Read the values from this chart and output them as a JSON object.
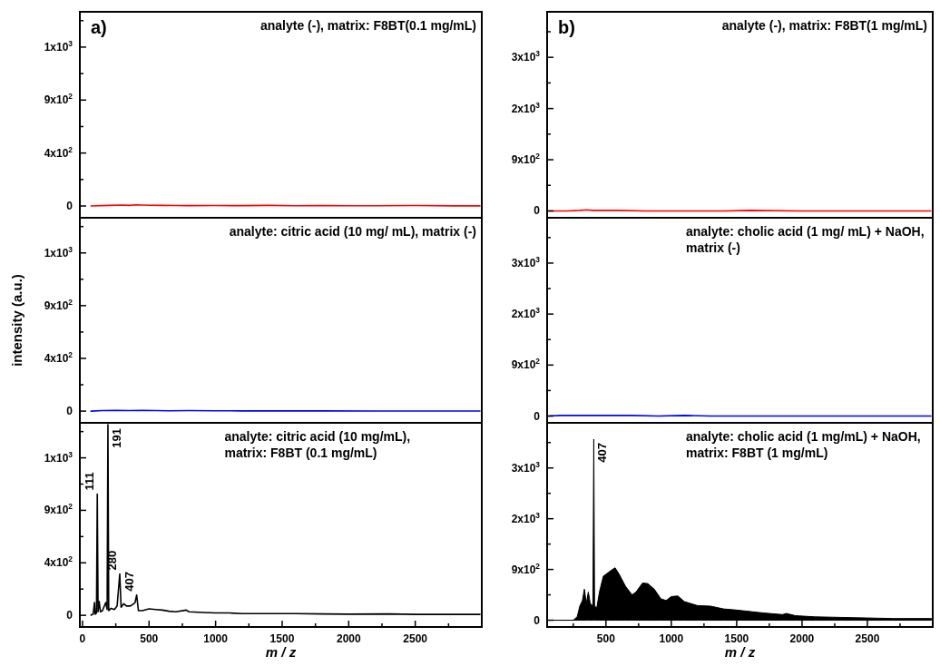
{
  "chart_data": [
    {
      "type": "line",
      "title": "a)",
      "subtitle": "analyte (-), matrix: F8BT(0.1 mg/mL)",
      "tick_labels": "y",
      "xlim": [
        -20,
        3000
      ],
      "ylim": [
        -100,
        1650
      ],
      "yticks": [
        {
          "value": 0,
          "label": "0"
        },
        {
          "value": 225,
          "label": null
        },
        {
          "value": 450,
          "label": "4x10$^{2}$"
        },
        {
          "value": 675,
          "label": null
        },
        {
          "value": 900,
          "label": "9x10$^{2}$"
        },
        {
          "value": 1125,
          "label": null
        },
        {
          "value": 1350,
          "label": "1x10$^{3}$"
        },
        {
          "value": 1575,
          "label": null
        }
      ],
      "series": [
        {
          "color": "#ff0000",
          "x": [
            60,
            200,
            300,
            350,
            400,
            450,
            500,
            600,
            700,
            800,
            1000,
            1200,
            1400,
            1600,
            1800,
            2000,
            2200,
            2500,
            2800,
            2990
          ],
          "values": [
            0,
            5,
            8,
            5,
            10,
            8,
            6,
            5,
            4,
            3,
            4,
            3,
            5,
            2,
            3,
            2,
            2,
            4,
            1,
            1
          ]
        }
      ]
    },
    {
      "type": "line",
      "title": "b)",
      "subtitle": "analyte (-), matrix: F8BT(1 mg/mL)",
      "tick_labels": "y",
      "xlim": [
        50,
        3000
      ],
      "ylim": [
        -120,
        3500
      ],
      "yticks": [
        {
          "value": 0,
          "label": "0"
        },
        {
          "value": 450,
          "label": null
        },
        {
          "value": 900,
          "label": "9x10$^{2}$"
        },
        {
          "value": 1350,
          "label": null
        },
        {
          "value": 1800,
          "label": "2x10$^{3}$"
        },
        {
          "value": 2250,
          "label": null
        },
        {
          "value": 2700,
          "label": "3x10$^{3}$"
        },
        {
          "value": 3150,
          "label": null
        }
      ],
      "series": [
        {
          "color": "#ff0000",
          "x": [
            60,
            200,
            300,
            350,
            400,
            500,
            600,
            800,
            1000,
            1200,
            1400,
            1600,
            2000,
            2400,
            2800,
            2990
          ],
          "values": [
            0,
            0,
            10,
            20,
            10,
            10,
            10,
            0,
            0,
            0,
            0,
            10,
            0,
            0,
            0,
            0
          ]
        }
      ]
    },
    {
      "type": "line",
      "subtitle": "analyte: citric acid (10 mg/ mL), matrix (-)",
      "ylabel": "intensity (a.u.)",
      "tick_labels": "y",
      "xlim": [
        -20,
        3000
      ],
      "ylim": [
        -100,
        1650
      ],
      "yticks": [
        {
          "value": 0,
          "label": "0"
        },
        {
          "value": 225,
          "label": null
        },
        {
          "value": 450,
          "label": "4x10$^{2}$"
        },
        {
          "value": 675,
          "label": null
        },
        {
          "value": 900,
          "label": "9x10$^{2}$"
        },
        {
          "value": 1125,
          "label": null
        },
        {
          "value": 1350,
          "label": "1x10$^{3}$"
        },
        {
          "value": 1575,
          "label": null
        }
      ],
      "series": [
        {
          "color": "#0000ff",
          "x": [
            60,
            150,
            250,
            350,
            450,
            550,
            650,
            800,
            1000,
            1200,
            1500,
            1800,
            2200,
            2600,
            2990
          ],
          "values": [
            0,
            4,
            6,
            5,
            6,
            4,
            3,
            4,
            3,
            2,
            2,
            2,
            1,
            1,
            1
          ]
        }
      ]
    },
    {
      "type": "line",
      "subtitle": "analyte: cholic acid (1 mg/ mL) + NaOH,\nmatrix (-)",
      "tick_labels": "y",
      "xlim": [
        50,
        3000
      ],
      "ylim": [
        -120,
        3500
      ],
      "yticks": [
        {
          "value": 0,
          "label": "0"
        },
        {
          "value": 450,
          "label": null
        },
        {
          "value": 900,
          "label": "9x10$^{2}$"
        },
        {
          "value": 1350,
          "label": null
        },
        {
          "value": 1800,
          "label": "2x10$^{3}$"
        },
        {
          "value": 2250,
          "label": null
        },
        {
          "value": 2700,
          "label": "3x10$^{3}$"
        },
        {
          "value": 3150,
          "label": null
        }
      ],
      "series": [
        {
          "color": "#0000ff",
          "x": [
            60,
            150,
            250,
            350,
            450,
            550,
            700,
            900,
            1100,
            1300,
            1600,
            2000,
            2400,
            2800,
            2990
          ],
          "values": [
            0,
            10,
            10,
            10,
            10,
            10,
            10,
            0,
            10,
            0,
            0,
            0,
            0,
            0,
            0
          ]
        }
      ]
    },
    {
      "type": "line",
      "xlabel": "m / z",
      "xlim": [
        -20,
        3000
      ],
      "ylim": [
        -100,
        1650
      ],
      "xticks": [
        0,
        {
          "value": 250,
          "label": null
        },
        500,
        {
          "value": 750,
          "label": null
        },
        1000,
        {
          "value": 1250,
          "label": null
        },
        1500,
        {
          "value": 1750,
          "label": null
        },
        2000,
        {
          "value": 2250,
          "label": null
        },
        2500,
        {
          "value": 2750,
          "label": null
        }
      ],
      "yticks": [
        {
          "value": 0,
          "label": "0"
        },
        {
          "value": 225,
          "label": null
        },
        {
          "value": 450,
          "label": "4x10$^{2}$"
        },
        {
          "value": 675,
          "label": null
        },
        {
          "value": 900,
          "label": "9x10$^{2}$"
        },
        {
          "value": 1125,
          "label": null
        },
        {
          "value": 1350,
          "label": "1x10$^{3}$"
        },
        {
          "value": 1575,
          "label": null
        }
      ],
      "subtitle": "analyte: citric acid (10 mg/mL),\nmatrix: F8BT (0.1 mg/mL)",
      "annotations": [
        {
          "text": "111",
          "x": 111,
          "y": 1040
        },
        {
          "text": "191",
          "x": 191,
          "y": 1634
        },
        {
          "text": "280",
          "x": 280,
          "y": 355
        },
        {
          "text": "407",
          "x": 407,
          "y": 174
        }
      ],
      "series": [
        {
          "color": "#000000",
          "x": [
            60,
            80,
            90,
            95,
            105,
            111,
            117,
            125,
            135,
            150,
            175,
            185,
            191,
            197,
            215,
            240,
            260,
            280,
            290,
            310,
            330,
            360,
            385,
            395,
            407,
            420,
            450,
            500,
            550,
            600,
            650,
            700,
            780,
            800,
            900,
            1000,
            1100,
            1200,
            1400,
            1600,
            1800,
            2000,
            2300,
            2500,
            2800,
            2990
          ],
          "values": [
            0,
            10,
            110,
            10,
            20,
            1040,
            30,
            120,
            30,
            40,
            110,
            50,
            1634,
            40,
            60,
            50,
            80,
            355,
            70,
            100,
            80,
            80,
            100,
            110,
            174,
            40,
            40,
            55,
            50,
            45,
            35,
            30,
            45,
            30,
            25,
            20,
            20,
            15,
            15,
            15,
            12,
            10,
            12,
            8,
            8,
            8
          ]
        }
      ]
    },
    {
      "type": "area",
      "xlabel": "m / z",
      "xlim": [
        50,
        3000
      ],
      "ylim": [
        -120,
        3500
      ],
      "xticks": [
        {
          "value": 250,
          "label": null
        },
        500,
        {
          "value": 750,
          "label": null
        },
        1000,
        {
          "value": 1250,
          "label": null
        },
        1500,
        {
          "value": 1750,
          "label": null
        },
        2000,
        {
          "value": 2250,
          "label": null
        },
        2500,
        {
          "value": 2750,
          "label": null
        }
      ],
      "yticks": [
        {
          "value": 0,
          "label": "0"
        },
        {
          "value": 450,
          "label": null
        },
        {
          "value": 900,
          "label": "9x10$^{2}$"
        },
        {
          "value": 1350,
          "label": null
        },
        {
          "value": 1800,
          "label": "2x10$^{3}$"
        },
        {
          "value": 2250,
          "label": null
        },
        {
          "value": 2700,
          "label": "3x10$^{3}$"
        },
        {
          "value": 3150,
          "label": null
        }
      ],
      "subtitle": "analyte: cholic acid (1 mg/mL) + NaOH,\nmatrix: F8BT (1 mg/mL)",
      "annotations": [
        {
          "text": "407",
          "x": 407,
          "y": 3210
        }
      ],
      "series": [
        {
          "color": "#000000",
          "x": [
            100,
            250,
            280,
            300,
            320,
            335,
            350,
            365,
            380,
            400,
            407,
            413,
            430,
            450,
            480,
            520,
            550,
            570,
            600,
            650,
            700,
            730,
            780,
            820,
            870,
            920,
            960,
            1000,
            1050,
            1100,
            1200,
            1300,
            1400,
            1500,
            1700,
            1850,
            1880,
            1950,
            2100,
            2300,
            2500,
            2700,
            2990
          ],
          "values": [
            0,
            0,
            60,
            250,
            350,
            550,
            300,
            500,
            300,
            250,
            3210,
            250,
            220,
            500,
            780,
            850,
            900,
            930,
            820,
            600,
            450,
            500,
            660,
            650,
            550,
            380,
            350,
            420,
            430,
            330,
            260,
            250,
            200,
            180,
            130,
            100,
            120,
            80,
            60,
            50,
            40,
            30,
            30
          ]
        }
      ]
    }
  ]
}
